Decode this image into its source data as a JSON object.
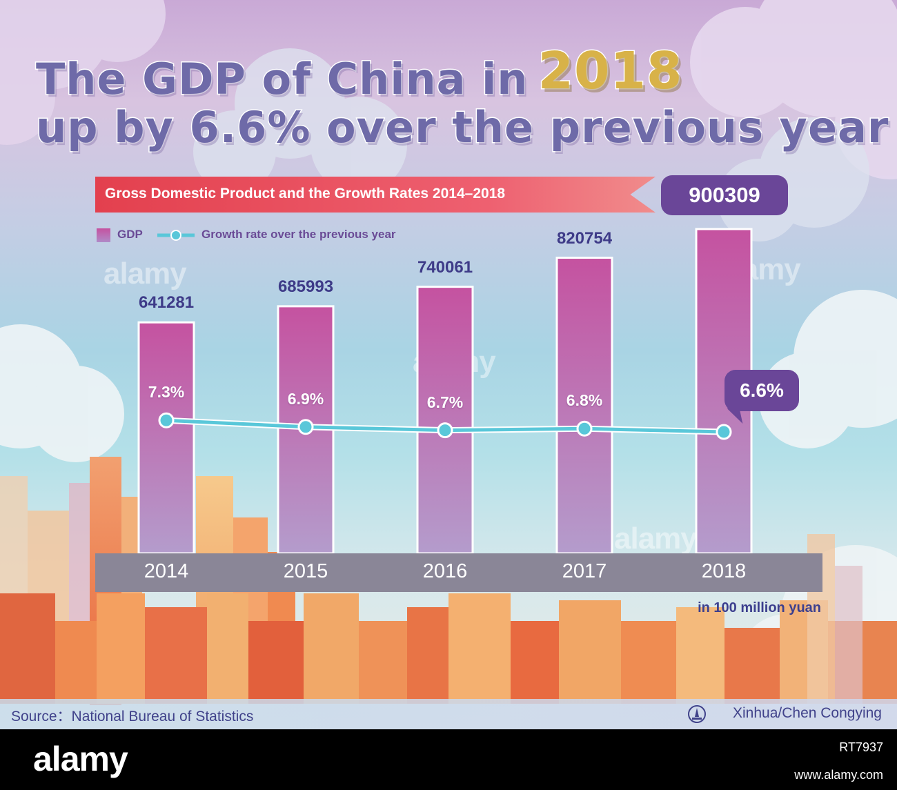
{
  "title": {
    "line1": "The GDP of China in",
    "year": "2018",
    "line2": "up by 6.6% over the previous year"
  },
  "ribbon_title": "Gross Domestic Product and the Growth Rates 2014–2018",
  "legend": {
    "gdp": "GDP",
    "growth": "Growth rate over the previous year"
  },
  "unit_label": "in 100 million yuan",
  "source": "Source：National Bureau of Statistics",
  "credit": "Xinhua/Chen Congying",
  "watermark": "alamy",
  "stock": {
    "logo": "alamy",
    "id": "RT7937",
    "url": "www.alamy.com"
  },
  "colors": {
    "bar_top": "#c552a0",
    "bar_bottom": "#b49ccc",
    "line": "#59c7d9",
    "badge": "#6a4698",
    "ribbon": "#e3404e",
    "label": "#3e3b88"
  },
  "chart_data": {
    "type": "bar",
    "title": "Gross Domestic Product and the Growth Rates 2014–2018",
    "categories": [
      "2014",
      "2015",
      "2016",
      "2017",
      "2018"
    ],
    "series": [
      {
        "name": "GDP",
        "type": "bar",
        "values": [
          641281,
          685993,
          740061,
          820754,
          900309
        ],
        "labels": [
          "641281",
          "685993",
          "740061",
          "820754",
          "900309"
        ]
      },
      {
        "name": "Growth rate over the previous year",
        "type": "line",
        "values": [
          7.3,
          6.9,
          6.7,
          6.8,
          6.6
        ],
        "labels": [
          "7.3%",
          "6.9%",
          "6.7%",
          "6.8%",
          "6.6%"
        ]
      }
    ],
    "unit": "in 100 million yuan",
    "legend_position": "top-left",
    "grid": false
  }
}
